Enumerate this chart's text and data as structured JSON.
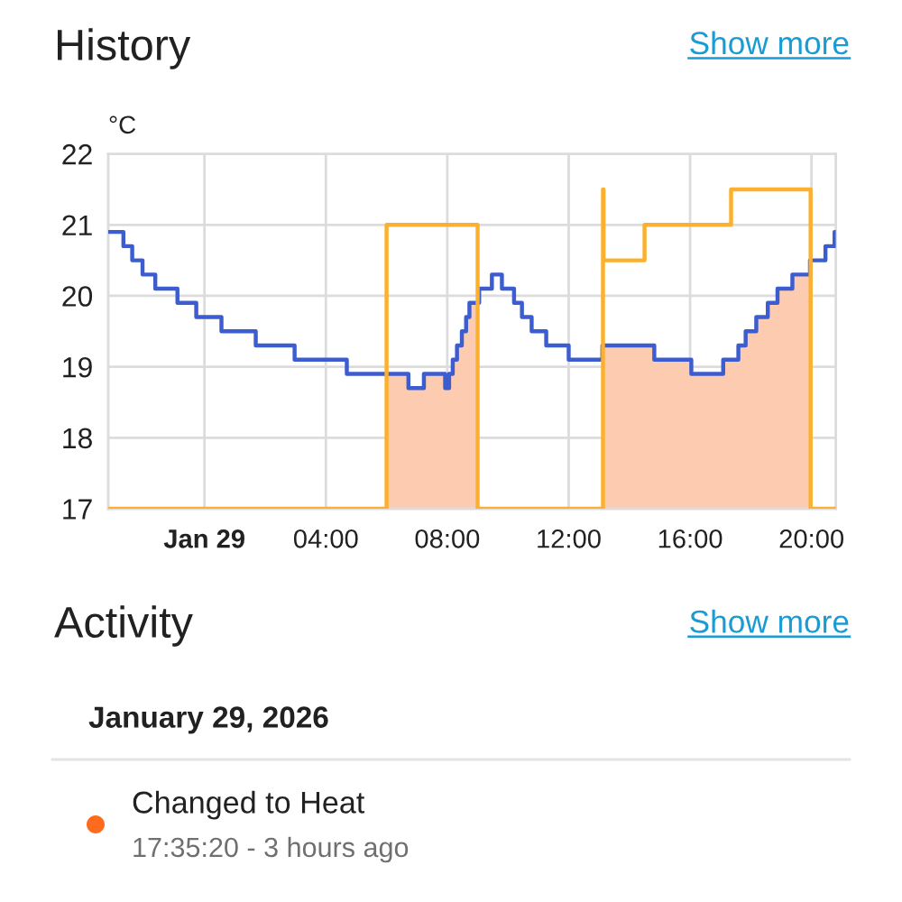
{
  "chart_data": {
    "type": "step",
    "title": "History",
    "ylabel": "°C",
    "xlim": [
      -3.17,
      20.8
    ],
    "ylim": [
      17,
      22
    ],
    "xticks": [
      {
        "value": 0,
        "label": "Jan 29"
      },
      {
        "value": 4,
        "label": "04:00"
      },
      {
        "value": 8,
        "label": "08:00"
      },
      {
        "value": 12,
        "label": "12:00"
      },
      {
        "value": 16,
        "label": "16:00"
      },
      {
        "value": 20,
        "label": "20:00"
      }
    ],
    "yticks": [
      17,
      18,
      19,
      20,
      21,
      22
    ],
    "grid": true,
    "series": [
      {
        "type": "area",
        "color": "#fdccb0",
        "x": [
          6.0,
          6.72,
          7.23,
          7.93,
          8.06,
          8.18,
          8.32,
          8.48,
          8.62,
          8.73,
          9.0,
          13.13,
          14.82,
          16.04,
          17.09,
          17.59,
          17.83,
          18.18,
          18.56,
          18.88,
          19.37,
          19.97
        ],
        "values": [
          18.9,
          18.7,
          18.9,
          18.7,
          18.9,
          19.1,
          19.3,
          19.5,
          19.7,
          19.9,
          17,
          19.3,
          19.1,
          18.9,
          19.1,
          19.3,
          19.5,
          19.7,
          19.9,
          20.1,
          20.3,
          17
        ]
      },
      {
        "color": "#3c5dcf",
        "x": [
          -3.17,
          -2.67,
          -2.38,
          -2.04,
          -1.62,
          -0.89,
          -0.27,
          0.56,
          1.69,
          2.97,
          4.69,
          6.72,
          7.23,
          7.93,
          8.06,
          8.18,
          8.32,
          8.48,
          8.62,
          8.73,
          9.05,
          9.47,
          9.8,
          10.2,
          10.46,
          10.78,
          11.26,
          12.0,
          13.11,
          14.82,
          16.04,
          17.09,
          17.59,
          17.83,
          18.18,
          18.56,
          18.88,
          19.37,
          19.95,
          20.46,
          20.76,
          20.8
        ],
        "values": [
          20.9,
          20.7,
          20.5,
          20.3,
          20.1,
          19.9,
          19.7,
          19.5,
          19.3,
          19.1,
          18.9,
          18.7,
          18.9,
          18.7,
          18.9,
          19.1,
          19.3,
          19.5,
          19.7,
          19.9,
          20.1,
          20.3,
          20.1,
          19.9,
          19.7,
          19.5,
          19.3,
          19.1,
          19.3,
          19.1,
          18.9,
          19.1,
          19.3,
          19.5,
          19.7,
          19.9,
          20.1,
          20.3,
          20.5,
          20.7,
          20.9,
          20.9
        ]
      },
      {
        "color": "#fbb12e",
        "x": [
          -3.17,
          6.0,
          9.0,
          13.13,
          13.15,
          14.5,
          17.35,
          19.97,
          20.8
        ],
        "values": [
          17,
          21,
          17,
          21.5,
          20.5,
          21,
          21.5,
          17,
          17
        ]
      }
    ],
    "annotations": [
      "Show more",
      "Activity",
      "Show more",
      "January 29, 2026",
      "Changed to Heat",
      "17:35:20 - 3 hours ago"
    ]
  }
}
